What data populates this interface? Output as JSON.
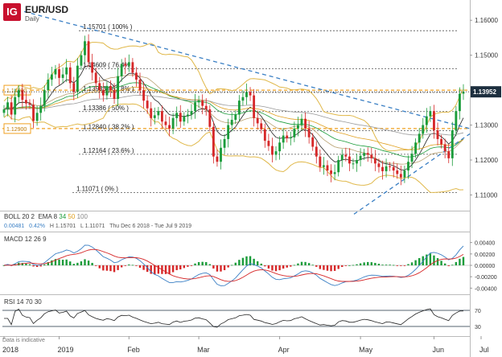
{
  "header": {
    "logo_text": "IG",
    "symbol": "EUR/USD",
    "timeframe": "Daily"
  },
  "indicators": {
    "boll": {
      "label": "BOLL",
      "p1": "20",
      "p2": "2"
    },
    "ema": {
      "label": "EMA",
      "p1": "8",
      "p2": "34",
      "p3": "50",
      "p4": "100"
    },
    "stats": {
      "v1": "0.00481",
      "v2": "0.42%",
      "h": "H 1.15701",
      "l": "L 1.11071",
      "range": "Thu Dec 6 2018 - Tue Jul 9 2019"
    },
    "macd": {
      "label": "MACD",
      "p1": "12",
      "p2": "26",
      "p3": "9"
    },
    "rsi": {
      "label": "RSI",
      "p1": "14",
      "p2": "70",
      "p3": "30"
    }
  },
  "disclaimer": "Data is indicative",
  "colors": {
    "up": "#1a9c3a",
    "down": "#d62728",
    "boll": "#e0b84a",
    "trend": "#3a7fc4",
    "fib_orange": "#f0a020",
    "macd_line": "#3a7fc4",
    "signal_line": "#d62728"
  },
  "chart_data": [
    {
      "type": "candlestick",
      "title": "EUR/USD",
      "x_ticks": [
        "2018",
        "2019",
        "Feb",
        "Mar",
        "Apr",
        "May",
        "Jun",
        "Jul"
      ],
      "y_ticks": [
        "1.16000",
        "1.15000",
        "1.14000",
        "1.13000",
        "1.12000",
        "1.11000"
      ],
      "ylim": [
        1.1055,
        1.1635
      ],
      "current_price": "1.13952",
      "left_tags": [
        "1.14000",
        "1.12900"
      ],
      "fib_levels": [
        {
          "label": "1.15701 ( 100% )",
          "value": 1.15701
        },
        {
          "label": "1.14609 ( 76.4% )",
          "value": 1.14609
        },
        {
          "label": "1.13933 ( 61.8% )",
          "value": 1.13933
        },
        {
          "label": "1.13386 ( 50% )",
          "value": 1.13386
        },
        {
          "label": "1.12840 ( 38.2% )",
          "value": 1.1284
        },
        {
          "label": "1.12164 ( 23.6% )",
          "value": 1.12164
        },
        {
          "label": "1.11071 ( 0% )",
          "value": 1.11071
        }
      ],
      "closes": [
        1.1345,
        1.1365,
        1.133,
        1.138,
        1.14,
        1.1372,
        1.1362,
        1.1358,
        1.1312,
        1.1335,
        1.1355,
        1.14,
        1.143,
        1.1445,
        1.146,
        1.1435,
        1.1445,
        1.1465,
        1.142,
        1.1395,
        1.147,
        1.15,
        1.154,
        1.148,
        1.145,
        1.142,
        1.14,
        1.1385,
        1.1412,
        1.14,
        1.1375,
        1.144,
        1.1475,
        1.147,
        1.148,
        1.145,
        1.143,
        1.14,
        1.137,
        1.1348,
        1.132,
        1.1328,
        1.134,
        1.131,
        1.13,
        1.129,
        1.132,
        1.1335,
        1.131,
        1.1325,
        1.133,
        1.134,
        1.1365,
        1.137,
        1.1355,
        1.1345,
        1.1295,
        1.121,
        1.1195,
        1.1235,
        1.126,
        1.13,
        1.1315,
        1.133,
        1.137,
        1.138,
        1.1395,
        1.1385,
        1.132,
        1.1305,
        1.1288,
        1.1255,
        1.124,
        1.1215,
        1.1225,
        1.125,
        1.127,
        1.1262,
        1.1265,
        1.129,
        1.13,
        1.1318,
        1.129,
        1.1265,
        1.1238,
        1.121,
        1.118,
        1.1185,
        1.117,
        1.116,
        1.1165,
        1.12,
        1.1215,
        1.121,
        1.119,
        1.119,
        1.12,
        1.1212,
        1.122,
        1.1215,
        1.1205,
        1.119,
        1.118,
        1.1168,
        1.1182,
        1.118,
        1.117,
        1.116,
        1.115,
        1.117,
        1.1195,
        1.1218,
        1.125,
        1.1275,
        1.13,
        1.1325,
        1.134,
        1.1285,
        1.126,
        1.1245,
        1.1225,
        1.1205,
        1.1285,
        1.134,
        1.139,
        1.1395
      ]
    },
    {
      "type": "bar",
      "title": "MACD 12 26 9",
      "y_ticks": [
        "0.00400",
        "0.00200",
        "0.00000",
        "-0.00200",
        "-0.00400"
      ],
      "ylim": [
        -0.0048,
        0.0048
      ]
    },
    {
      "type": "line",
      "title": "RSI 14 70 30",
      "y_ticks": [
        "70",
        "30"
      ],
      "ylim": [
        10,
        90
      ]
    }
  ]
}
